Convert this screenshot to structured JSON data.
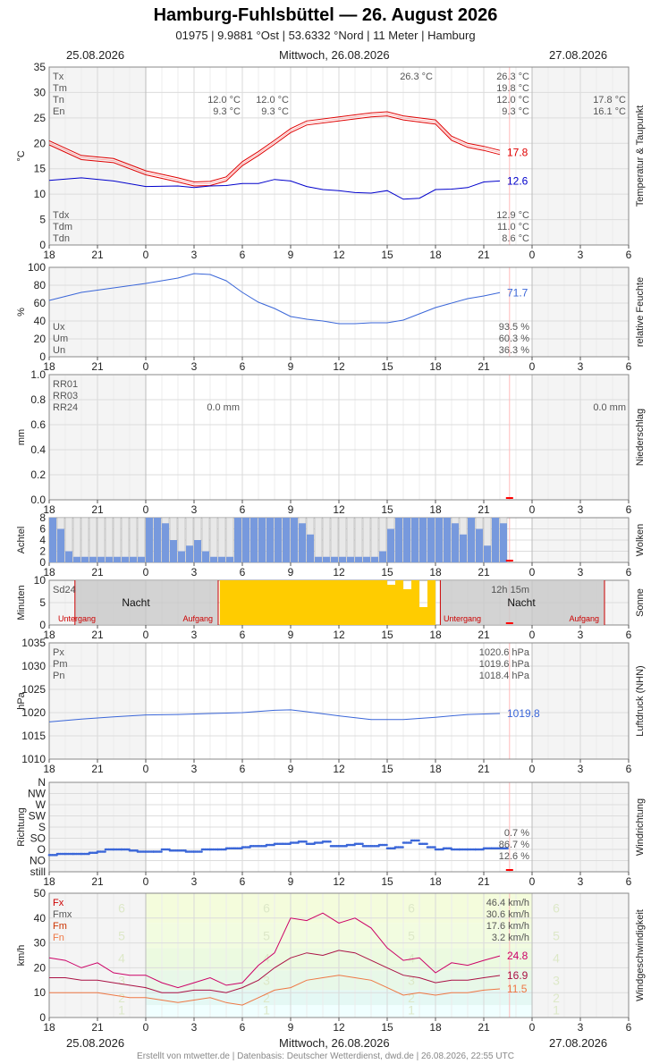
{
  "header": {
    "title": "Hamburg-Fuhlsbüttel  —  26. August 2026",
    "subtitle": "01975  |  9.9881 °Ost  |  53.6332 °Nord  |  11 Meter  |  Hamburg",
    "date_left": "25.08.2026",
    "date_center": "Mittwoch, 26.08.2026",
    "date_right": "27.08.2026"
  },
  "footer": "Erstellt von mtwetter.de | Datenbasis: Deutscher Wetterdienst, dwd.de | 26.08.2026, 22:55 UTC",
  "colors": {
    "temp": "#e00000",
    "dew": "#0000cc",
    "blue_line": "#3a66d8",
    "cloud_fill": "#7799dd",
    "sun": "#ffcc00",
    "wind_fx": "#cc0066",
    "wind_fm": "#aa1144",
    "wind_fn": "#ee7744",
    "marker_red": "#ff0000"
  },
  "chart_data": [
    {
      "type": "line",
      "id": "temp",
      "side_label": "Temperatur & Taupunkt",
      "ylabel": "°C",
      "ylim": [
        0,
        35
      ],
      "yticks": [
        "0",
        "5",
        "10",
        "15",
        "20",
        "25",
        "30",
        "35"
      ],
      "xticks": [
        "18",
        "21",
        "0",
        "3",
        "6",
        "9",
        "12",
        "15",
        "18",
        "21",
        "0",
        "3",
        "6"
      ],
      "labels_tl": [
        "Tx",
        "Tm",
        "Tn",
        "En"
      ],
      "labels_bl": [
        "Tdx",
        "Tdm",
        "Tdn"
      ],
      "values_tr": [
        "26.3 °C",
        "19.8 °C",
        "12.0 °C",
        "9.3 °C"
      ],
      "values_br": [
        "12.9 °C",
        "11.0 °C",
        "8.6 °C"
      ],
      "prev_day": [
        "12.0 °C",
        "9.3 °C"
      ],
      "mid_a": [
        "12.0 °C",
        "9.3 °C"
      ],
      "next_day": [
        "17.8 °C",
        "16.1 °C"
      ],
      "max_label": "26.3 °C",
      "end_values": [
        "17.8",
        "12.6"
      ],
      "series": [
        {
          "key": "temp",
          "x": [
            18,
            20,
            22,
            24,
            26,
            27,
            28,
            29,
            30,
            31,
            32,
            33,
            34,
            36,
            38,
            39,
            40,
            42,
            43,
            44,
            45,
            46
          ],
          "values": [
            20.1,
            17.2,
            16.6,
            14.2,
            12.8,
            12.0,
            12.1,
            13.0,
            16.0,
            18.0,
            20.2,
            22.5,
            24.0,
            24.8,
            25.6,
            25.8,
            25.0,
            24.2,
            21.0,
            19.6,
            19.0,
            18.2
          ]
        },
        {
          "key": "dew",
          "x": [
            18,
            20,
            22,
            24,
            26,
            27,
            28,
            29,
            30,
            31,
            32,
            33,
            34,
            35,
            36,
            37,
            38,
            39,
            40,
            41,
            42,
            43,
            44,
            45,
            46
          ],
          "values": [
            12.7,
            13.2,
            12.6,
            11.5,
            11.6,
            11.3,
            11.6,
            11.7,
            12.1,
            12.1,
            12.9,
            12.6,
            11.5,
            10.9,
            10.7,
            10.3,
            10.2,
            10.7,
            9.0,
            9.2,
            10.9,
            11.0,
            11.3,
            12.4,
            12.6
          ]
        }
      ]
    },
    {
      "type": "line",
      "id": "hum",
      "side_label": "relative Feuchte",
      "ylabel": "%",
      "ylim": [
        0,
        100
      ],
      "yticks": [
        "0",
        "20",
        "40",
        "60",
        "80",
        "100"
      ],
      "xticks": [
        "18",
        "21",
        "0",
        "3",
        "6",
        "9",
        "12",
        "15",
        "18",
        "21",
        "0",
        "3",
        "6"
      ],
      "labels_bl": [
        "Ux",
        "Um",
        "Un"
      ],
      "values_br": [
        "93.5 %",
        "60.3 %",
        "36.3 %"
      ],
      "end_values": [
        "71.7"
      ],
      "series": [
        {
          "key": "humidity",
          "x": [
            18,
            20,
            22,
            24,
            26,
            27,
            28,
            29,
            30,
            31,
            32,
            33,
            34,
            35,
            36,
            37,
            38,
            39,
            40,
            41,
            42,
            43,
            44,
            45,
            46
          ],
          "values": [
            63,
            72,
            77,
            82,
            88,
            93,
            92,
            85,
            72,
            61,
            54,
            45,
            42,
            40,
            37,
            37,
            38,
            38,
            41,
            48,
            55,
            60,
            65,
            68,
            71.7
          ]
        }
      ]
    },
    {
      "type": "bar",
      "id": "rain",
      "side_label": "Niederschlag",
      "ylabel": "mm",
      "ylim": [
        0,
        1.0
      ],
      "yticks": [
        "0.0",
        "0.2",
        "0.4",
        "0.6",
        "0.8",
        "1.0"
      ],
      "xticks": [
        "18",
        "21",
        "0",
        "3",
        "6",
        "9",
        "12",
        "15",
        "18",
        "21",
        "0",
        "3",
        "6"
      ],
      "labels_tl": [
        "RR01",
        "RR03",
        "RR24"
      ],
      "rr24_prev": "0.0 mm",
      "rr24_next": "0.0 mm",
      "values": []
    },
    {
      "type": "bar",
      "id": "cloud",
      "side_label": "Wolken",
      "ylabel": "Achtel",
      "ylim": [
        0,
        8
      ],
      "yticks": [
        "0",
        "2",
        "4",
        "6",
        "8"
      ],
      "xticks": [
        "18",
        "21",
        "0",
        "3",
        "6",
        "9",
        "12",
        "15",
        "18",
        "21",
        "0",
        "3",
        "6"
      ],
      "x": [
        18,
        18.5,
        19,
        19.5,
        20,
        20.5,
        21,
        21.5,
        22,
        22.5,
        23,
        23.5,
        24,
        24.5,
        25,
        25.5,
        26,
        26.5,
        27,
        27.5,
        28,
        28.5,
        29,
        29.5,
        30,
        30.5,
        31,
        31.5,
        32,
        32.5,
        33,
        33.5,
        34,
        34.5,
        35,
        35.5,
        36,
        36.5,
        37,
        37.5,
        38,
        38.5,
        39,
        39.5,
        40,
        40.5,
        41,
        41.5,
        42,
        42.5,
        43,
        43.5,
        44,
        44.5,
        45,
        45.5,
        46
      ],
      "values": [
        8,
        6,
        2,
        1,
        1,
        1,
        1,
        1,
        1,
        1,
        1,
        1,
        8,
        8,
        7,
        4,
        2,
        3,
        4,
        2,
        1,
        1,
        1,
        8,
        8,
        8,
        8,
        8,
        8,
        8,
        8,
        7,
        5,
        1,
        1,
        1,
        1,
        1,
        1,
        1,
        1,
        2,
        6,
        8,
        8,
        8,
        8,
        8,
        8,
        8,
        7,
        5,
        8,
        6,
        3,
        8,
        7
      ]
    },
    {
      "type": "bar",
      "id": "sun",
      "side_label": "Sonne",
      "ylabel": "Minuten",
      "ylim": [
        0,
        10
      ],
      "yticks": [
        "0",
        "5",
        "10"
      ],
      "xticks": [
        "18",
        "21",
        "0",
        "3",
        "6",
        "9",
        "12",
        "15",
        "18",
        "21",
        "0",
        "3",
        "6"
      ],
      "label_tl": "Sd24",
      "night_label": "Nacht",
      "sunset_label": "Untergang",
      "sunrise_label": "Aufgang",
      "daylength": "12h 15m",
      "x": [
        28.6,
        29,
        29.5,
        30,
        30.5,
        31,
        31.5,
        32,
        32.5,
        33,
        33.5,
        34,
        34.5,
        35,
        35.5,
        36,
        36.5,
        37,
        37.5,
        38,
        38.5,
        39,
        39.5,
        40,
        40.5,
        41,
        41.5
      ],
      "values": [
        10,
        10,
        10,
        10,
        10,
        10,
        10,
        10,
        10,
        10,
        10,
        10,
        10,
        10,
        10,
        10,
        10,
        10,
        10,
        10,
        10,
        9,
        10,
        8,
        10,
        4,
        10
      ]
    },
    {
      "type": "line",
      "id": "press",
      "side_label": "Luftdruck (NHN)",
      "ylabel": "hPa",
      "ylim": [
        1010,
        1035
      ],
      "yticks": [
        "1010",
        "1015",
        "1020",
        "1025",
        "1030",
        "1035"
      ],
      "xticks": [
        "18",
        "21",
        "0",
        "3",
        "6",
        "9",
        "12",
        "15",
        "18",
        "21",
        "0",
        "3",
        "6"
      ],
      "labels_tl": [
        "Px",
        "Pm",
        "Pn"
      ],
      "values_tr": [
        "1020.6 hPa",
        "1019.6 hPa",
        "1018.4 hPa"
      ],
      "end_values": [
        "1019.8"
      ],
      "series": [
        {
          "key": "pressure",
          "x": [
            18,
            20,
            22,
            24,
            26,
            28,
            30,
            32,
            33,
            34,
            36,
            38,
            40,
            42,
            44,
            46
          ],
          "values": [
            1018.0,
            1018.6,
            1019.1,
            1019.5,
            1019.6,
            1019.8,
            1020.0,
            1020.5,
            1020.6,
            1020.2,
            1019.3,
            1018.5,
            1018.5,
            1019.0,
            1019.6,
            1019.8
          ]
        }
      ]
    },
    {
      "type": "scatter",
      "id": "wdir",
      "side_label": "Windrichtung",
      "ylabel": "Richtung",
      "yticks": [
        "still",
        "NO",
        "O",
        "SO",
        "S",
        "SW",
        "W",
        "NW",
        "N"
      ],
      "xticks": [
        "18",
        "21",
        "0",
        "3",
        "6",
        "9",
        "12",
        "15",
        "18",
        "21",
        "0",
        "3",
        "6"
      ],
      "values_br": [
        "0.7 %",
        "86.7 %",
        "12.6 %"
      ],
      "x": [
        18,
        18.5,
        19,
        19.5,
        20,
        20.5,
        21,
        21.5,
        22,
        22.5,
        23,
        23.5,
        24,
        24.5,
        25,
        25.5,
        26,
        26.5,
        27,
        27.5,
        28,
        28.5,
        29,
        29.5,
        30,
        30.5,
        31,
        31.5,
        32,
        32.5,
        33,
        33.5,
        34,
        34.5,
        35,
        35.5,
        36,
        36.5,
        37,
        37.5,
        38,
        38.5,
        39,
        39.5,
        40,
        40.5,
        41,
        41.5,
        42,
        42.5,
        43,
        43.5,
        44,
        44.5,
        45,
        45.5,
        46
      ],
      "values": [
        1.5,
        1.6,
        1.6,
        1.6,
        1.6,
        1.7,
        1.8,
        2.0,
        2.0,
        2.0,
        1.9,
        1.8,
        1.8,
        1.8,
        2.0,
        1.9,
        1.9,
        1.8,
        1.8,
        2.0,
        2.0,
        2.0,
        2.1,
        2.1,
        2.2,
        2.3,
        2.3,
        2.4,
        2.5,
        2.5,
        2.6,
        2.7,
        2.5,
        2.6,
        2.7,
        2.3,
        2.3,
        2.4,
        2.5,
        2.3,
        2.3,
        2.4,
        2.1,
        2.2,
        2.6,
        2.8,
        2.5,
        2.2,
        2.0,
        2.1,
        2.0,
        2.0,
        2.0,
        2.0,
        2.1,
        2.1,
        2.1
      ]
    },
    {
      "type": "line",
      "id": "wind",
      "side_label": "Windgeschwindigkeit",
      "ylabel": "km/h",
      "ylim": [
        0,
        50
      ],
      "yticks": [
        "0",
        "10",
        "20",
        "30",
        "40",
        "50"
      ],
      "xticks": [
        "18",
        "21",
        "0",
        "3",
        "6",
        "9",
        "12",
        "15",
        "18",
        "21",
        "0",
        "3",
        "6"
      ],
      "labels_tl": [
        "Fx",
        "Fmx",
        "Fm",
        "Fn"
      ],
      "values_tr": [
        "46.4 km/h",
        "30.6 km/h",
        "17.6 km/h",
        "3.2 km/h"
      ],
      "end_values": [
        "24.8",
        "16.9",
        "11.5"
      ],
      "beaufort": [
        "1",
        "2",
        "3",
        "4",
        "5",
        "6"
      ],
      "series": [
        {
          "key": "fx",
          "x": [
            18,
            19,
            20,
            21,
            22,
            23,
            24,
            25,
            26,
            27,
            28,
            29,
            30,
            31,
            32,
            33,
            34,
            35,
            36,
            37,
            38,
            39,
            40,
            41,
            42,
            43,
            44,
            45,
            46
          ],
          "values": [
            24,
            23,
            20,
            22,
            18,
            17,
            17,
            14,
            12,
            14,
            16,
            13,
            14,
            21,
            26,
            40,
            39,
            42,
            38,
            40,
            36,
            28,
            23,
            24,
            18,
            22,
            21,
            23,
            24.8
          ]
        },
        {
          "key": "fm",
          "x": [
            18,
            19,
            20,
            21,
            22,
            23,
            24,
            25,
            26,
            27,
            28,
            29,
            30,
            31,
            32,
            33,
            34,
            35,
            36,
            37,
            38,
            39,
            40,
            41,
            42,
            43,
            44,
            45,
            46
          ],
          "values": [
            16,
            16,
            15,
            15,
            14,
            13,
            12,
            10,
            10,
            11,
            11,
            10,
            12,
            15,
            20,
            24,
            26,
            25,
            27,
            26,
            23,
            20,
            17,
            16,
            14,
            15,
            15,
            16,
            16.9
          ]
        },
        {
          "key": "fn",
          "x": [
            18,
            19,
            20,
            21,
            22,
            23,
            24,
            25,
            26,
            27,
            28,
            29,
            30,
            31,
            32,
            33,
            34,
            35,
            36,
            37,
            38,
            39,
            40,
            41,
            42,
            43,
            44,
            45,
            46
          ],
          "values": [
            10,
            10,
            10,
            10,
            9,
            8,
            8,
            7,
            6,
            7,
            8,
            6,
            5,
            8,
            11,
            12,
            15,
            16,
            17,
            16,
            15,
            12,
            9,
            10,
            9,
            10,
            10,
            11,
            11.5
          ]
        }
      ]
    }
  ]
}
